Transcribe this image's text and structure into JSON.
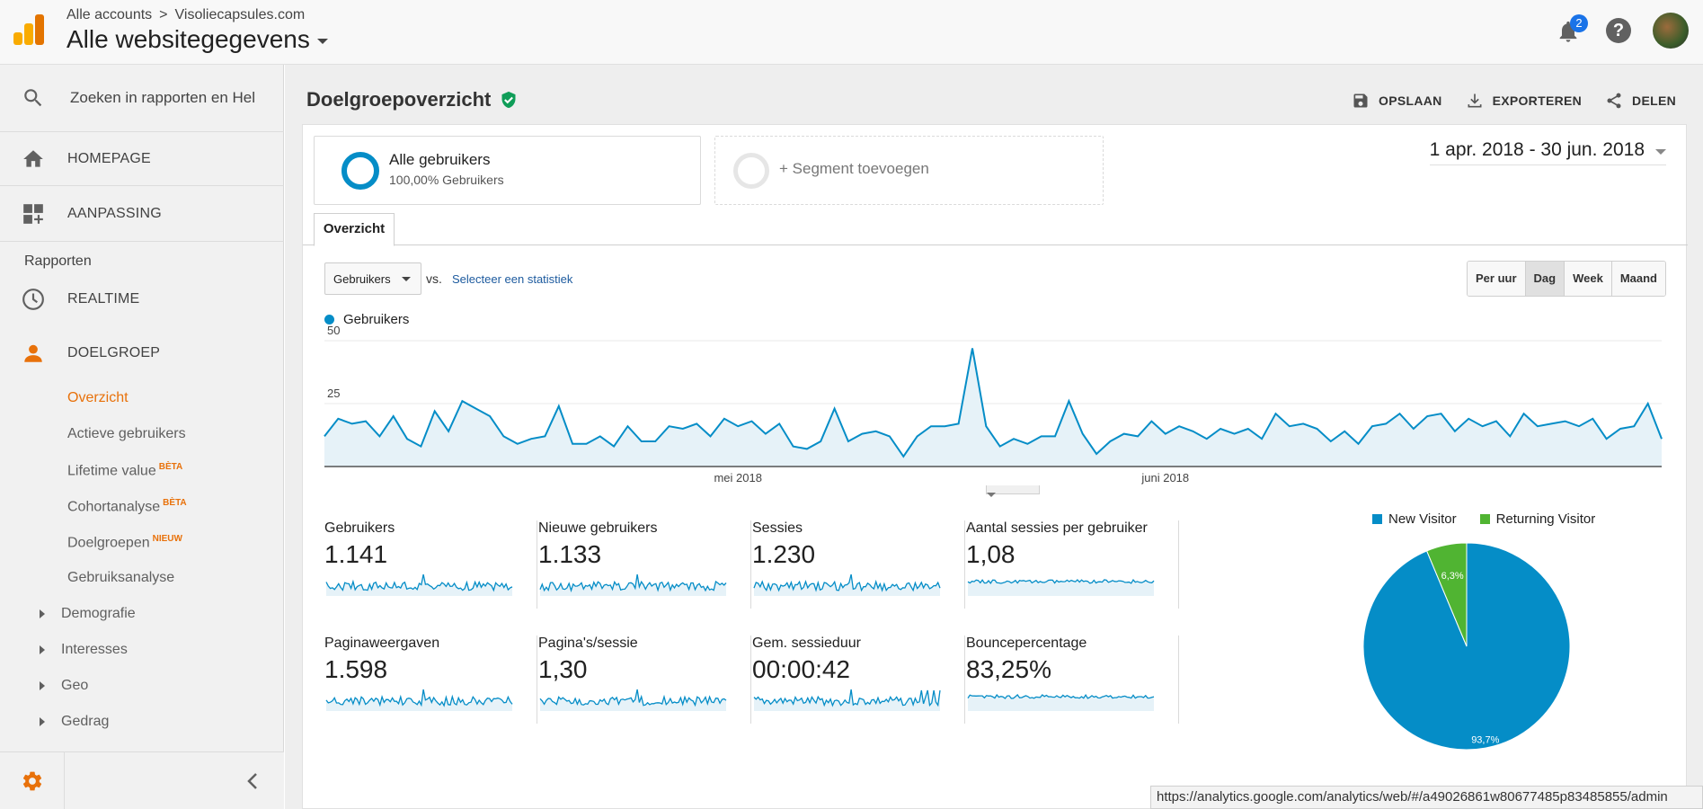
{
  "header": {
    "breadcrumb_accounts": "Alle accounts",
    "breadcrumb_separator": ">",
    "breadcrumb_site": "Visoliecapsules.com",
    "property_title": "Alle websitegegevens",
    "notification_count": "2",
    "help_glyph": "?"
  },
  "sidebar": {
    "search_placeholder": "Zoeken in rapporten en Hel",
    "homepage": "HOMEPAGE",
    "customization": "AANPASSING",
    "reports_label": "Rapporten",
    "realtime": "REALTIME",
    "audience": "DOELGROEP",
    "sub_items": [
      {
        "label": "Overzicht"
      },
      {
        "label": "Actieve gebruikers"
      },
      {
        "label": "Lifetime value",
        "tag": "BÈTA"
      },
      {
        "label": "Cohortanalyse",
        "tag": "BÈTA"
      },
      {
        "label": "Doelgroepen",
        "tag": "NIEUW"
      },
      {
        "label": "Gebruiksanalyse"
      }
    ],
    "tree_items": [
      "Demografie",
      "Interesses",
      "Geo",
      "Gedrag"
    ]
  },
  "main": {
    "page_title": "Doelgroepoverzicht",
    "actions": {
      "save": "OPSLAAN",
      "export": "EXPORTEREN",
      "share": "DELEN"
    },
    "segment1_name": "Alle gebruikers",
    "segment1_sub": "100,00% Gebruikers",
    "segment2_name": "+ Segment toevoegen",
    "date_range": "1 apr. 2018 - 30 jun. 2018",
    "tab": "Overzicht",
    "metric_select": "Gebruikers",
    "vs": "vs.",
    "select_metric_link": "Selecteer een statistiek",
    "periods": [
      "Per uur",
      "Dag",
      "Week",
      "Maand"
    ],
    "active_period": "Dag",
    "legend_label": "Gebruikers"
  },
  "chart_data": [
    {
      "type": "area",
      "series": [
        {
          "name": "Gebruikers",
          "values": [
            12,
            19,
            17,
            18,
            12,
            20,
            11,
            8,
            22,
            14,
            26,
            23,
            20,
            12,
            9,
            11,
            12,
            24,
            9,
            9,
            12,
            8,
            16,
            10,
            10,
            16,
            15,
            17,
            12,
            19,
            16,
            18,
            13,
            17,
            8,
            7,
            10,
            23,
            10,
            13,
            14,
            12,
            4,
            12,
            16,
            16,
            17,
            47,
            16,
            8,
            11,
            9,
            12,
            12,
            26,
            13,
            5,
            10,
            13,
            12,
            18,
            13,
            16,
            14,
            11,
            15,
            13,
            15,
            11,
            21,
            16,
            17,
            15,
            10,
            14,
            9,
            16,
            17,
            21,
            15,
            20,
            21,
            14,
            19,
            16,
            18,
            12,
            21,
            16,
            17,
            18,
            16,
            19,
            11,
            15,
            16,
            25,
            11
          ]
        }
      ],
      "x_tick_labels": [
        "mei 2018",
        "juni 2018"
      ],
      "y_tick_labels": [
        "50",
        "25"
      ],
      "ylim": [
        0,
        50
      ],
      "color": "#058dc7"
    },
    {
      "type": "pie",
      "series": [
        {
          "name": "New Visitor",
          "value": 93.7,
          "label": "93,7%",
          "color": "#058dc7"
        },
        {
          "name": "Returning Visitor",
          "value": 6.3,
          "label": "6,3%",
          "color": "#50b432"
        }
      ]
    }
  ],
  "metrics": [
    {
      "label": "Gebruikers",
      "value": "1.141"
    },
    {
      "label": "Nieuwe gebruikers",
      "value": "1.133"
    },
    {
      "label": "Sessies",
      "value": "1.230"
    },
    {
      "label": "Aantal sessies per gebruiker",
      "value": "1,08"
    },
    {
      "label": "Paginaweergaven",
      "value": "1.598"
    },
    {
      "label": "Pagina's/sessie",
      "value": "1,30"
    },
    {
      "label": "Gem. sessieduur",
      "value": "00:00:42"
    },
    {
      "label": "Bouncepercentage",
      "value": "83,25%"
    }
  ],
  "status_bar": {
    "url": "https://analytics.google.com/analytics/web/#/a49026861w80677485p83485855/admin"
  },
  "colors": {
    "accent": "#e8710a",
    "chart_blue": "#058dc7",
    "returning_green": "#50b432"
  }
}
